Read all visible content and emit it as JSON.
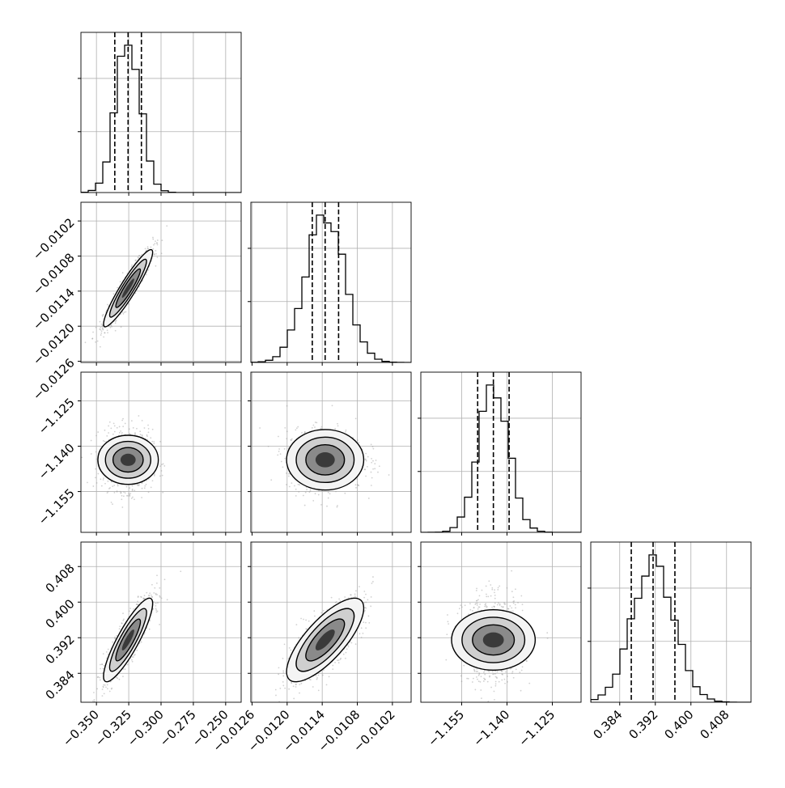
{
  "chart_data": {
    "type": "corner",
    "parameters": [
      {
        "ticks": [
          -0.35,
          -0.325,
          -0.3,
          -0.275,
          -0.25
        ],
        "tick_labels": [
          "−0.350",
          "−0.325",
          "−0.300",
          "−0.275",
          "−0.250"
        ],
        "range": [
          -0.362,
          -0.238
        ],
        "mean": -0.3255,
        "std": 0.0095,
        "quantiles": [
          -0.3358,
          -0.3255,
          -0.3152
        ]
      },
      {
        "ticks": [
          -0.0126,
          -0.012,
          -0.0114,
          -0.0108,
          -0.0102
        ],
        "tick_labels": [
          "−0.0126",
          "−0.0120",
          "−0.0114",
          "−0.0108",
          "−0.0102"
        ],
        "range": [
          -0.01262,
          -0.00988
        ],
        "mean": -0.01135,
        "std": 0.00033,
        "quantiles": [
          -0.01157,
          -0.01135,
          -0.01112
        ]
      },
      {
        "ticks": [
          -1.155,
          -1.14,
          -1.125
        ],
        "tick_labels": [
          "−1.155",
          "−1.140",
          "−1.125"
        ],
        "range": [
          -1.1685,
          -1.1155
        ],
        "mean": -1.1445,
        "std": 0.005,
        "quantiles": [
          -1.1497,
          -1.1445,
          -1.1393
        ]
      },
      {
        "ticks": [
          0.384,
          0.392,
          0.4,
          0.408
        ],
        "tick_labels": [
          "0.384",
          "0.392",
          "0.400",
          "0.408"
        ],
        "range": [
          0.3775,
          0.4135
        ],
        "mean": 0.3915,
        "std": 0.0047,
        "quantiles": [
          0.3866,
          0.3915,
          0.3964
        ]
      }
    ],
    "correlations": [
      [
        1,
        0.93,
        0.0,
        0.87
      ],
      [
        0.93,
        1,
        0.0,
        0.76
      ],
      [
        0.0,
        0.0,
        1,
        0.0
      ],
      [
        0.87,
        0.76,
        0.0,
        1
      ]
    ],
    "contour_levels": [
      0.5,
      1.0,
      1.5,
      2.0
    ],
    "grid": true
  }
}
